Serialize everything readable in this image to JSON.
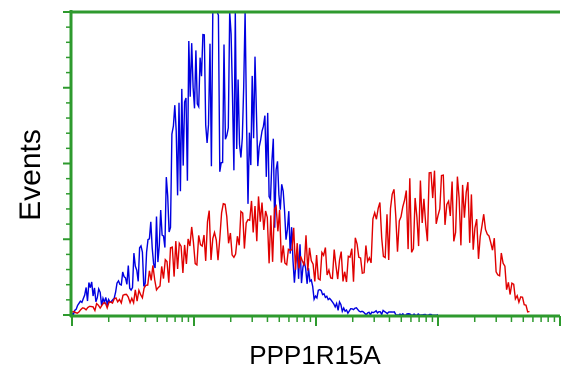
{
  "chart_data": {
    "type": "line",
    "chart_kind": "flow cytometry histogram overlay",
    "title": "",
    "xlabel": "PPP1R15A",
    "ylabel": "Events",
    "x_scale": "log",
    "xlim": [
      1,
      10000
    ],
    "ylim": [
      0,
      100
    ],
    "grid": false,
    "legend": "none",
    "frame_color": "#2e9a2e",
    "series": [
      {
        "name": "",
        "color": "#0000e0",
        "x": [
          1.0,
          1.4,
          2.0,
          2.8,
          4.0,
          5.6,
          7.9,
          11.2,
          15.8,
          22.4,
          31.6,
          44.7,
          63.1,
          89.1,
          126,
          178,
          251,
          355,
          501,
          708,
          1000
        ],
        "y": [
          0,
          8,
          4,
          12,
          18,
          35,
          55,
          74,
          82,
          79,
          60,
          41,
          22,
          10,
          4,
          2,
          1,
          1,
          0,
          0,
          0
        ]
      },
      {
        "name": "",
        "color": "#e00000",
        "x": [
          1.0,
          1.8,
          3.2,
          5.6,
          10,
          17.8,
          31.6,
          56.2,
          100,
          178,
          316,
          562,
          1000,
          1778,
          3162,
          5623
        ],
        "y": [
          1,
          3,
          6,
          15,
          22,
          28,
          30,
          25,
          18,
          15,
          28,
          33,
          37,
          33,
          17,
          1
        ]
      }
    ]
  }
}
